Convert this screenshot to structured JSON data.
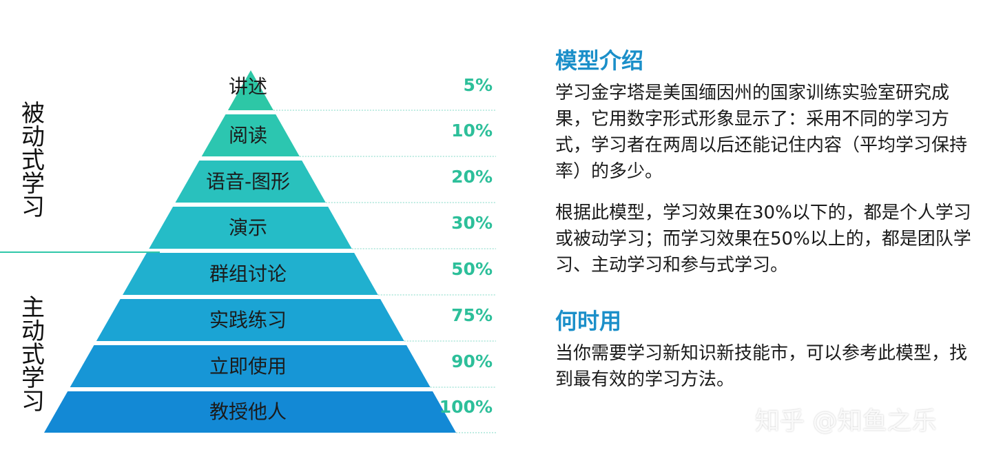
{
  "pyramid": {
    "layers": [
      {
        "label": "讲述",
        "percent": "5%",
        "color": "#2dc7a6"
      },
      {
        "label": "阅读",
        "percent": "10%",
        "color": "#2cc6b0"
      },
      {
        "label": "语音-图形",
        "percent": "20%",
        "color": "#29c1bd"
      },
      {
        "label": "演示",
        "percent": "30%",
        "color": "#25bcc7"
      },
      {
        "label": "群组讨论",
        "percent": "50%",
        "color": "#20b0cf"
      },
      {
        "label": "实践练习",
        "percent": "75%",
        "color": "#1ba4d4"
      },
      {
        "label": "立即使用",
        "percent": "90%",
        "color": "#1796d6"
      },
      {
        "label": "教授他人",
        "percent": "100%",
        "color": "#1389d5"
      }
    ],
    "percent_color": "#2dbf9a",
    "dotted_line_color": "#7fd8c6"
  },
  "side_labels": {
    "passive": "被动式学习",
    "active": "主动式学习"
  },
  "intro": {
    "heading": "模型介绍",
    "paragraph1": "学习金字塔是美国缅因州的国家训练实验室研究成果，它用数字形式形象显示了：采用不同的学习方式，学习者在两周以后还能记住内容（平均学习保持率）的多少。",
    "paragraph2": "根据此模型，学习效果在30%以下的，都是个人学习或被动学习；而学习效果在50%以上的，都是团队学习、主动学习和参与式学习。"
  },
  "when": {
    "heading": "何时用",
    "paragraph": "当你需要学习新知识新技能市，可以参考此模型，找到最有效的学习方法。"
  },
  "watermark": "知乎 @知鱼之乐",
  "colors": {
    "accent_heading": "#1b8fc9",
    "divider": "#2ec7a9"
  }
}
